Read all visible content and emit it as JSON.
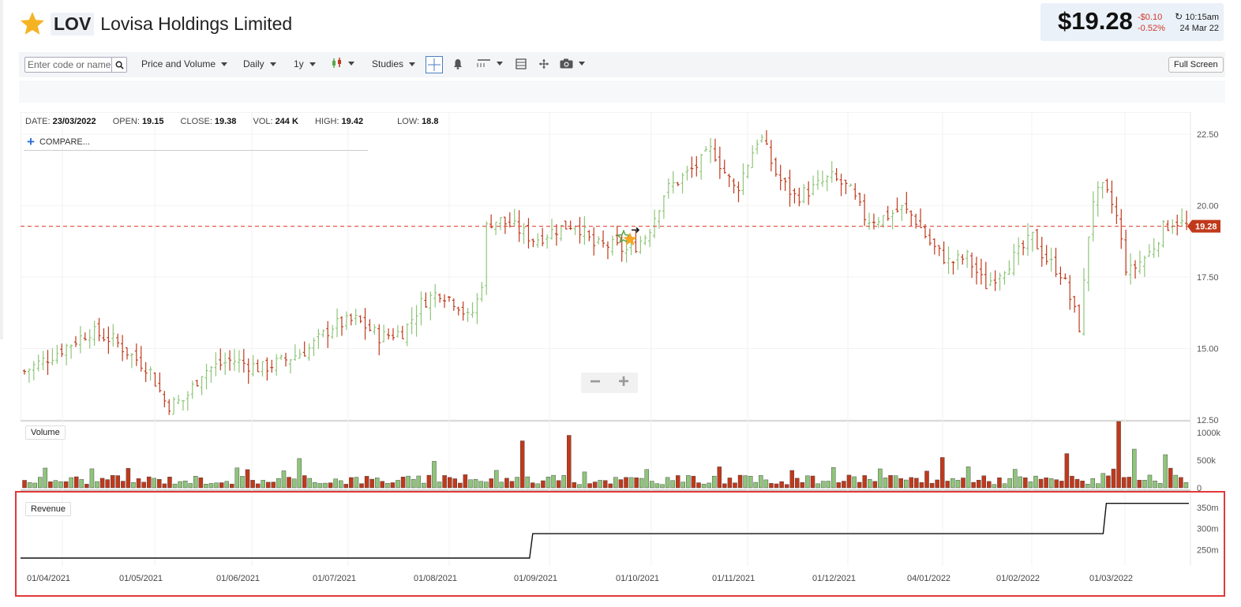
{
  "header": {
    "ticker": "LOV",
    "company": "Lovisa Holdings Limited"
  },
  "quote": {
    "price": "$19.28",
    "change": "-$0.10",
    "change_pct": "-0.52%",
    "time": "10:15am",
    "date": "24 Mar 22"
  },
  "toolbar": {
    "search_placeholder": "Enter code or name",
    "chart_type": "Price and Volume",
    "interval": "Daily",
    "range": "1y",
    "studies": "Studies",
    "fullscreen": "Full Screen"
  },
  "ohlc": {
    "date_label": "DATE:",
    "date": "23/03/2022",
    "open_label": "OPEN:",
    "open": "19.15",
    "close_label": "CLOSE:",
    "close": "19.38",
    "vol_label": "VOL:",
    "vol": "244 K",
    "high_label": "HIGH:",
    "high": "19.42",
    "low_label": "LOW:",
    "low": "18.8"
  },
  "compare": "COMPARE...",
  "panels": {
    "volume": "Volume",
    "revenue": "Revenue"
  },
  "colors": {
    "up": "#8fc57a",
    "down": "#c0391b",
    "last": "#e05a4a",
    "line": "#111111"
  },
  "chart_data": [
    {
      "type": "bar",
      "subtype": "ohlc",
      "y_ticks": [
        "22.50",
        "20.00",
        "17.50",
        "15.00",
        "12.50"
      ],
      "y_range": [
        12.5,
        23.0
      ],
      "last_price_label": "19.28",
      "last_price": 19.28,
      "keypoints": [
        [
          0,
          14.2
        ],
        [
          10,
          14.8
        ],
        [
          22,
          15.6
        ],
        [
          30,
          15.3
        ],
        [
          38,
          14.6
        ],
        [
          42,
          14.3
        ],
        [
          48,
          13.0
        ],
        [
          54,
          13.2
        ],
        [
          60,
          14.2
        ],
        [
          70,
          14.6
        ],
        [
          80,
          14.3
        ],
        [
          88,
          14.6
        ],
        [
          96,
          15.0
        ],
        [
          104,
          15.8
        ],
        [
          112,
          16.0
        ],
        [
          120,
          15.4
        ],
        [
          128,
          15.6
        ],
        [
          134,
          16.6
        ],
        [
          140,
          17.0
        ],
        [
          146,
          16.6
        ],
        [
          150,
          16.0
        ],
        [
          154,
          17.0
        ],
        [
          156,
          19.4
        ],
        [
          160,
          19.5
        ],
        [
          166,
          19.2
        ],
        [
          172,
          18.8
        ],
        [
          180,
          19.2
        ],
        [
          186,
          19.4
        ],
        [
          192,
          18.6
        ],
        [
          198,
          18.6
        ],
        [
          204,
          18.4
        ],
        [
          210,
          19.0
        ],
        [
          216,
          20.5
        ],
        [
          222,
          21.0
        ],
        [
          228,
          21.5
        ],
        [
          232,
          22.0
        ],
        [
          236,
          21.2
        ],
        [
          240,
          20.5
        ],
        [
          244,
          21.5
        ],
        [
          248,
          22.5
        ],
        [
          254,
          21.0
        ],
        [
          260,
          20.3
        ],
        [
          266,
          20.6
        ],
        [
          272,
          21.0
        ],
        [
          278,
          20.6
        ],
        [
          284,
          19.5
        ],
        [
          290,
          19.6
        ],
        [
          296,
          19.9
        ],
        [
          300,
          19.6
        ],
        [
          306,
          18.6
        ],
        [
          312,
          18.0
        ],
        [
          318,
          18.2
        ],
        [
          324,
          17.2
        ],
        [
          330,
          17.8
        ],
        [
          336,
          18.4
        ],
        [
          340,
          18.9
        ],
        [
          344,
          18.2
        ],
        [
          350,
          17.6
        ],
        [
          356,
          15.7
        ],
        [
          360,
          20.2
        ],
        [
          364,
          20.6
        ],
        [
          368,
          19.8
        ],
        [
          372,
          17.6
        ],
        [
          376,
          18.0
        ],
        [
          380,
          18.4
        ],
        [
          384,
          19.2
        ],
        [
          388,
          19.5
        ],
        [
          392,
          19.28
        ]
      ],
      "candle_count": 250
    },
    {
      "type": "bar",
      "title": "Volume",
      "y_ticks": [
        "1000k",
        "500k",
        "0"
      ],
      "y_range": [
        0,
        1100000
      ],
      "spikes": [
        [
          110,
          530000
        ],
        [
          166,
          480000
        ],
        [
          200,
          850000
        ],
        [
          220,
          950000
        ],
        [
          280,
          380000
        ],
        [
          370,
          550000
        ],
        [
          380,
          380000
        ],
        [
          420,
          620000
        ],
        [
          440,
          1200000
        ],
        [
          447,
          700000
        ],
        [
          460,
          600000
        ]
      ]
    },
    {
      "type": "line",
      "title": "Revenue",
      "y_ticks": [
        "350m",
        "300m",
        "250m"
      ],
      "y_range": [
        230,
        365
      ],
      "x": [
        "01/04/2021",
        "01/05/2021",
        "01/06/2021",
        "01/07/2021",
        "01/08/2021",
        "01/09/2021",
        "01/10/2021",
        "01/11/2021",
        "01/12/2021",
        "04/01/2022",
        "01/02/2022",
        "01/03/2022"
      ],
      "steps": [
        {
          "from": "01/04/2021",
          "value": 230
        },
        {
          "from": "26/08/2021",
          "value": 288
        },
        {
          "from": "25/02/2022",
          "value": 360
        }
      ]
    }
  ]
}
